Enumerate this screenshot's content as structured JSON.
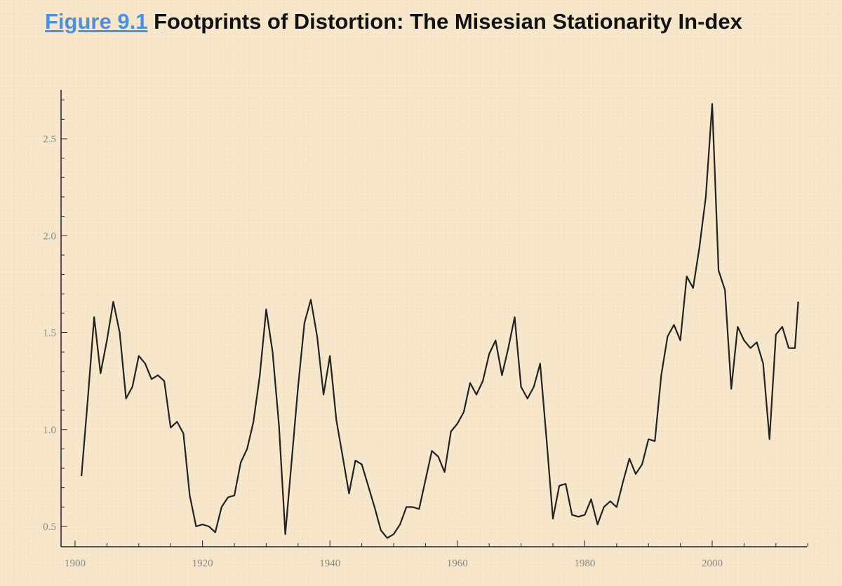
{
  "caption": {
    "figure_link": "Figure 9.1",
    "title": "Footprints of Distortion: The Misesian Stationarity In-dex"
  },
  "colors": {
    "link": "#4a90e2",
    "line": "#222222",
    "background": "#f7e6c8"
  },
  "chart_data": {
    "type": "line",
    "title": "Footprints of Distortion: The Misesian Stationarity Index",
    "xlabel": "",
    "ylabel": "",
    "xlim": [
      1900,
      2015
    ],
    "ylim": [
      0.43,
      2.74
    ],
    "x_ticks": [
      1900,
      1920,
      1940,
      1960,
      1980,
      2000
    ],
    "y_ticks": [
      0.5,
      1.0,
      1.5,
      2.0,
      2.5
    ],
    "x_tick_labels": [
      "1900",
      "1920",
      "1940",
      "1960",
      "1980",
      "2000"
    ],
    "y_tick_labels": [
      "0.5",
      "1.0",
      "1.5",
      "2.0",
      "2.5"
    ],
    "series": [
      {
        "name": "Misesian Stationarity Index",
        "x": [
          1901,
          1902,
          1903,
          1904,
          1905,
          1906,
          1907,
          1908,
          1909,
          1910,
          1911,
          1912,
          1913,
          1914,
          1915,
          1916,
          1917,
          1918,
          1919,
          1920,
          1921,
          1922,
          1923,
          1924,
          1925,
          1926,
          1927,
          1928,
          1929,
          1930,
          1931,
          1932,
          1933,
          1934,
          1935,
          1936,
          1937,
          1938,
          1939,
          1940,
          1941,
          1942,
          1943,
          1944,
          1945,
          1946,
          1947,
          1948,
          1949,
          1950,
          1951,
          1952,
          1953,
          1954,
          1955,
          1956,
          1957,
          1958,
          1959,
          1960,
          1961,
          1962,
          1963,
          1964,
          1965,
          1966,
          1967,
          1968,
          1969,
          1970,
          1971,
          1972,
          1973,
          1974,
          1975,
          1976,
          1977,
          1978,
          1979,
          1980,
          1981,
          1982,
          1983,
          1984,
          1985,
          1986,
          1987,
          1988,
          1989,
          1990,
          1991,
          1992,
          1993,
          1994,
          1995,
          1996,
          1997,
          1998,
          1999,
          2000,
          2001,
          2002,
          2003,
          2004,
          2005,
          2006,
          2007,
          2008,
          2009,
          2010,
          2011,
          2012,
          2013,
          2013.5
        ],
        "values": [
          0.76,
          1.16,
          1.58,
          1.29,
          1.46,
          1.66,
          1.5,
          1.16,
          1.22,
          1.38,
          1.34,
          1.26,
          1.28,
          1.25,
          1.01,
          1.04,
          0.98,
          0.66,
          0.5,
          0.51,
          0.5,
          0.47,
          0.6,
          0.65,
          0.66,
          0.83,
          0.9,
          1.04,
          1.28,
          1.62,
          1.4,
          1.02,
          0.46,
          0.84,
          1.22,
          1.55,
          1.67,
          1.48,
          1.18,
          1.38,
          1.05,
          0.86,
          0.67,
          0.84,
          0.82,
          0.71,
          0.6,
          0.48,
          0.44,
          0.46,
          0.51,
          0.6,
          0.6,
          0.59,
          0.74,
          0.89,
          0.86,
          0.78,
          0.99,
          1.03,
          1.09,
          1.24,
          1.18,
          1.25,
          1.39,
          1.46,
          1.28,
          1.42,
          1.58,
          1.22,
          1.16,
          1.22,
          1.34,
          0.95,
          0.54,
          0.71,
          0.72,
          0.56,
          0.55,
          0.56,
          0.64,
          0.51,
          0.6,
          0.63,
          0.6,
          0.73,
          0.85,
          0.77,
          0.82,
          0.95,
          0.94,
          1.28,
          1.48,
          1.54,
          1.46,
          1.79,
          1.73,
          1.94,
          2.2,
          2.68,
          1.82,
          1.72,
          1.21,
          1.53,
          1.46,
          1.42,
          1.45,
          1.34,
          0.95,
          1.49,
          1.53,
          1.42,
          1.42,
          1.66
        ]
      }
    ]
  }
}
